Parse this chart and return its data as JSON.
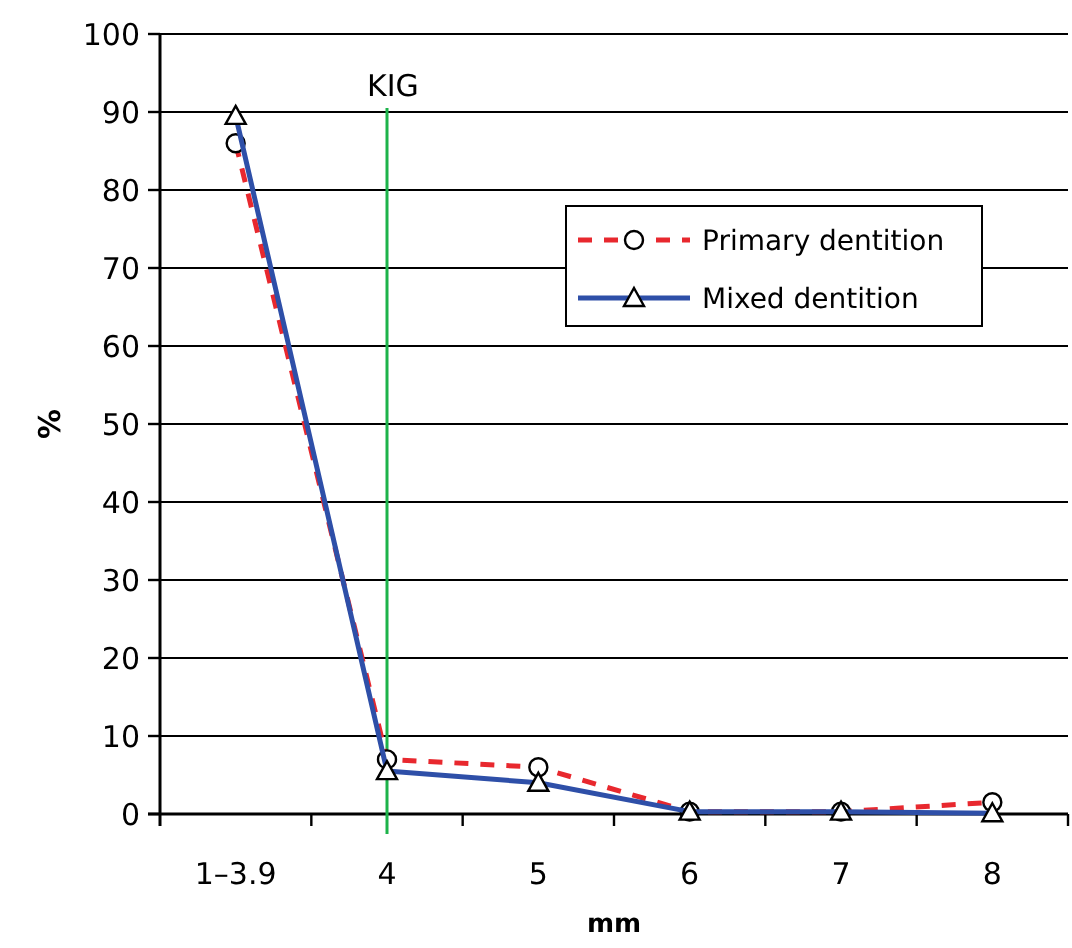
{
  "chart_data": {
    "type": "line",
    "xlabel": "mm",
    "ylabel": "%",
    "categories": [
      "1–3.9",
      "4",
      "5",
      "6",
      "7",
      "8"
    ],
    "series": [
      {
        "name": "Primary dentition",
        "color": "#e8282e",
        "values": [
          86,
          7,
          6,
          0.3,
          0.3,
          1.5
        ],
        "marker": "circle",
        "line_style": "dashed"
      },
      {
        "name": "Mixed dentition",
        "color": "#2e4fa8",
        "values": [
          89.5,
          5.5,
          4,
          0.3,
          0.3,
          0.1
        ],
        "marker": "triangle",
        "line_style": "solid"
      }
    ],
    "ylim": [
      0,
      100
    ],
    "yticks": [
      0,
      10,
      20,
      30,
      40,
      50,
      60,
      70,
      80,
      90,
      100
    ],
    "grid": "y",
    "legend": "top right",
    "ref_lines": [
      {
        "axis": "x",
        "value": "4",
        "label": "KIG",
        "color": "#1db34a"
      }
    ]
  }
}
